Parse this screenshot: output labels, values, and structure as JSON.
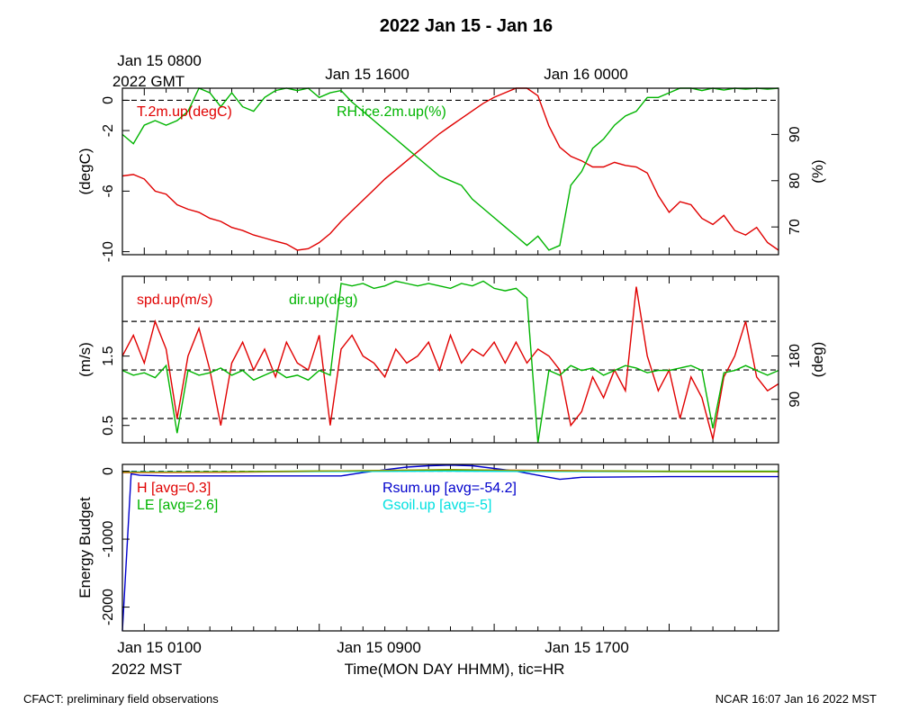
{
  "page": {
    "title": "2022 Jan 15 - Jan 16",
    "footer_left": "CFACT: preliminary field observations",
    "footer_right": "NCAR 16:07 Jan 16 2022 MST",
    "top_axis": {
      "first_label_line1": "Jan 15 0800",
      "first_label_line2": "2022 GMT",
      "labels": [
        "Jan 15 1600",
        "Jan 16 0000"
      ]
    },
    "bottom_axis": {
      "labels": [
        "Jan 15 0100",
        "Jan 15 0900",
        "Jan 15 1700"
      ],
      "year_label": "2022 MST",
      "title": "Time(MON DAY HHMM), tic=HR"
    }
  },
  "colors": {
    "red": "#e00000",
    "green": "#00b400",
    "blue": "#0000cc",
    "cyan": "#00e0e0",
    "olive": "#999900",
    "black": "#000000"
  },
  "chart_data": [
    {
      "type": "line",
      "panel": "temperature-humidity",
      "x_unit": "hours since Jan 15 0000 MST",
      "xlim": [
        0,
        30
      ],
      "left_axis": {
        "label": "(degC)",
        "ticks": [
          0,
          -2,
          -6,
          -10
        ],
        "ylim": [
          -10.2,
          0.8
        ]
      },
      "right_axis": {
        "label": "(%)",
        "ticks": [
          90,
          80,
          70
        ],
        "ylim": [
          64,
          100
        ]
      },
      "reference_lines_left": [
        0
      ],
      "series": [
        {
          "name": "T.2m.up(degC)",
          "axis": "left",
          "color": "red",
          "x": [
            0,
            0.5,
            1,
            1.5,
            2,
            2.5,
            3,
            3.5,
            4,
            4.5,
            5,
            5.5,
            6,
            6.5,
            7,
            7.5,
            8,
            8.5,
            9,
            9.5,
            10,
            10.5,
            11,
            11.5,
            12,
            12.5,
            13,
            13.5,
            14,
            14.5,
            15,
            15.5,
            16,
            16.5,
            17,
            17.5,
            18,
            18.5,
            19,
            19.5,
            20,
            20.5,
            21,
            21.5,
            22,
            22.5,
            23,
            23.5,
            24,
            24.5,
            25,
            25.5,
            26,
            26.5,
            27,
            27.5,
            28,
            28.5,
            29,
            29.5,
            30
          ],
          "y": [
            -5.0,
            -4.9,
            -5.2,
            -6.0,
            -6.2,
            -6.9,
            -7.2,
            -7.4,
            -7.8,
            -8.0,
            -8.4,
            -8.6,
            -8.9,
            -9.1,
            -9.3,
            -9.5,
            -9.9,
            -9.8,
            -9.4,
            -8.8,
            -8.0,
            -7.3,
            -6.6,
            -5.9,
            -5.2,
            -4.6,
            -4.0,
            -3.4,
            -2.8,
            -2.2,
            -1.7,
            -1.2,
            -0.7,
            -0.2,
            0.2,
            0.5,
            0.8,
            0.9,
            0.3,
            -1.7,
            -3.1,
            -3.7,
            -4.0,
            -4.4,
            -4.4,
            -4.1,
            -4.3,
            -4.4,
            -4.8,
            -6.3,
            -7.4,
            -6.7,
            -6.9,
            -7.8,
            -8.2,
            -7.6,
            -8.6,
            -8.9,
            -8.4,
            -9.4,
            -9.9
          ]
        },
        {
          "name": "RH.ice.2m.up(%)",
          "axis": "right",
          "color": "green",
          "x": [
            0,
            0.5,
            1,
            1.5,
            2,
            2.5,
            3,
            3.5,
            4,
            4.5,
            5,
            5.5,
            6,
            6.5,
            7,
            7.5,
            8,
            8.5,
            9,
            9.5,
            10,
            10.5,
            11,
            11.5,
            12,
            12.5,
            13,
            13.5,
            14,
            14.5,
            15,
            15.5,
            16,
            16.5,
            17,
            17.5,
            18,
            18.5,
            19,
            19.5,
            20,
            20.5,
            21,
            21.5,
            22,
            22.5,
            23,
            23.5,
            24,
            24.5,
            25,
            25.5,
            26,
            26.5,
            27,
            27.5,
            28,
            28.5,
            29,
            29.5,
            30
          ],
          "y": [
            90,
            88,
            92,
            93,
            92,
            93,
            95,
            100,
            99,
            96,
            99,
            96,
            95,
            98,
            99.5,
            100,
            99.5,
            100,
            98,
            99,
            99.5,
            97,
            95,
            93,
            91,
            89,
            87,
            85,
            83,
            81,
            80,
            79,
            76,
            74,
            72,
            70,
            68,
            66,
            68,
            65,
            66,
            79,
            82,
            87,
            89,
            92,
            94,
            95,
            98,
            98,
            99,
            100,
            100,
            99.5,
            100,
            99.6,
            100,
            99.8,
            100,
            99.8,
            100
          ]
        }
      ]
    },
    {
      "type": "line",
      "panel": "wind",
      "x_unit": "hours since Jan 15 0000 MST",
      "xlim": [
        0,
        30
      ],
      "left_axis": {
        "label": "(m/s)",
        "ticks": [
          1.5,
          0.5
        ],
        "ylim": [
          0.25,
          2.65
        ]
      },
      "right_axis": {
        "label": "(deg)",
        "ticks": [
          180,
          90
        ],
        "ylim": [
          0,
          345
        ]
      },
      "reference_lines_left": [
        2.0,
        1.3,
        0.6
      ],
      "series": [
        {
          "name": "spd.up(m/s)",
          "axis": "left",
          "color": "red",
          "x": [
            0,
            0.5,
            1,
            1.5,
            2,
            2.5,
            3,
            3.5,
            4,
            4.5,
            5,
            5.5,
            6,
            6.5,
            7,
            7.5,
            8,
            8.5,
            9,
            9.5,
            10,
            10.5,
            11,
            11.5,
            12,
            12.5,
            13,
            13.5,
            14,
            14.5,
            15,
            15.5,
            16,
            16.5,
            17,
            17.5,
            18,
            18.5,
            19,
            19.5,
            20,
            20.5,
            21,
            21.5,
            22,
            22.5,
            23,
            23.5,
            24,
            24.5,
            25,
            25.5,
            26,
            26.5,
            27,
            27.5,
            28,
            28.5,
            29,
            29.5,
            30
          ],
          "y": [
            1.5,
            1.8,
            1.4,
            2.0,
            1.6,
            0.6,
            1.5,
            1.9,
            1.3,
            0.5,
            1.4,
            1.7,
            1.3,
            1.6,
            1.2,
            1.7,
            1.4,
            1.3,
            1.8,
            0.5,
            1.6,
            1.8,
            1.5,
            1.4,
            1.2,
            1.6,
            1.4,
            1.5,
            1.7,
            1.3,
            1.8,
            1.4,
            1.6,
            1.5,
            1.7,
            1.4,
            1.7,
            1.4,
            1.6,
            1.5,
            1.3,
            0.5,
            0.7,
            1.2,
            0.9,
            1.3,
            1.0,
            2.5,
            1.5,
            1.0,
            1.3,
            0.6,
            1.2,
            0.9,
            0.3,
            1.2,
            1.5,
            2.0,
            1.2,
            1.0,
            1.1
          ]
        },
        {
          "name": "dir.up(deg)",
          "axis": "right",
          "color": "green",
          "x": [
            0,
            0.5,
            1,
            1.5,
            2,
            2.5,
            3,
            3.5,
            4,
            4.5,
            5,
            5.5,
            6,
            6.5,
            7,
            7.5,
            8,
            8.5,
            9,
            9.5,
            10,
            10.5,
            11,
            11.5,
            12,
            12.5,
            13,
            13.5,
            14,
            14.5,
            15,
            15.5,
            16,
            16.5,
            17,
            17.5,
            18,
            18.5,
            19,
            19.5,
            20,
            20.5,
            21,
            21.5,
            22,
            22.5,
            23,
            23.5,
            24,
            24.5,
            25,
            25.5,
            26,
            26.5,
            27,
            27.5,
            28,
            28.5,
            29,
            29.5,
            30
          ],
          "y": [
            150,
            140,
            145,
            135,
            160,
            20,
            150,
            140,
            145,
            155,
            140,
            150,
            130,
            140,
            150,
            135,
            140,
            130,
            150,
            140,
            330,
            325,
            330,
            320,
            325,
            335,
            330,
            325,
            330,
            325,
            320,
            330,
            325,
            335,
            320,
            315,
            320,
            300,
            0,
            150,
            140,
            160,
            150,
            155,
            140,
            150,
            160,
            155,
            145,
            150,
            150,
            155,
            160,
            150,
            30,
            145,
            150,
            160,
            150,
            140,
            150
          ]
        }
      ]
    },
    {
      "type": "line",
      "panel": "energy-budget",
      "x_unit": "hours since Jan 15 0000 MST",
      "xlim": [
        0,
        30
      ],
      "left_axis": {
        "label": "Energy Budget",
        "ticks": [
          0,
          -1000,
          -2000
        ],
        "ylim": [
          -2350,
          100
        ]
      },
      "reference_lines_left": [
        0
      ],
      "series": [
        {
          "name": "H",
          "legend": "H [avg=0.3]",
          "color": "red",
          "x": [
            0,
            5,
            10,
            15,
            20,
            25,
            30
          ],
          "y": [
            -20,
            -15,
            0,
            20,
            10,
            -5,
            -10
          ]
        },
        {
          "name": "LE",
          "legend": "LE [avg=2.6]",
          "color": "green",
          "x": [
            0,
            5,
            10,
            15,
            20,
            25,
            30
          ],
          "y": [
            -10,
            -5,
            5,
            15,
            5,
            0,
            0
          ]
        },
        {
          "name": "Rsum.up",
          "legend": "Rsum.up [avg=-54.2]",
          "color": "blue",
          "x": [
            0,
            0.4,
            0.8,
            2,
            5,
            10,
            11,
            12,
            13,
            14,
            15,
            16,
            17,
            18,
            19,
            20,
            21,
            25,
            30
          ],
          "y": [
            -2350,
            -40,
            -60,
            -70,
            -70,
            -70,
            -20,
            20,
            60,
            80,
            90,
            80,
            40,
            0,
            -60,
            -120,
            -90,
            -80,
            -80
          ]
        },
        {
          "name": "Gsoil.up",
          "legend": "Gsoil.up [avg=-5]",
          "color": "cyan",
          "x": [
            0,
            5,
            10,
            15,
            20,
            25,
            30
          ],
          "y": [
            -8,
            -8,
            -5,
            0,
            -5,
            -8,
            -8
          ]
        },
        {
          "name": "olive",
          "color": "olive",
          "x": [
            0,
            5,
            10,
            15,
            20,
            25,
            30
          ],
          "y": [
            -15,
            -10,
            5,
            25,
            5,
            -5,
            -10
          ]
        }
      ]
    }
  ]
}
